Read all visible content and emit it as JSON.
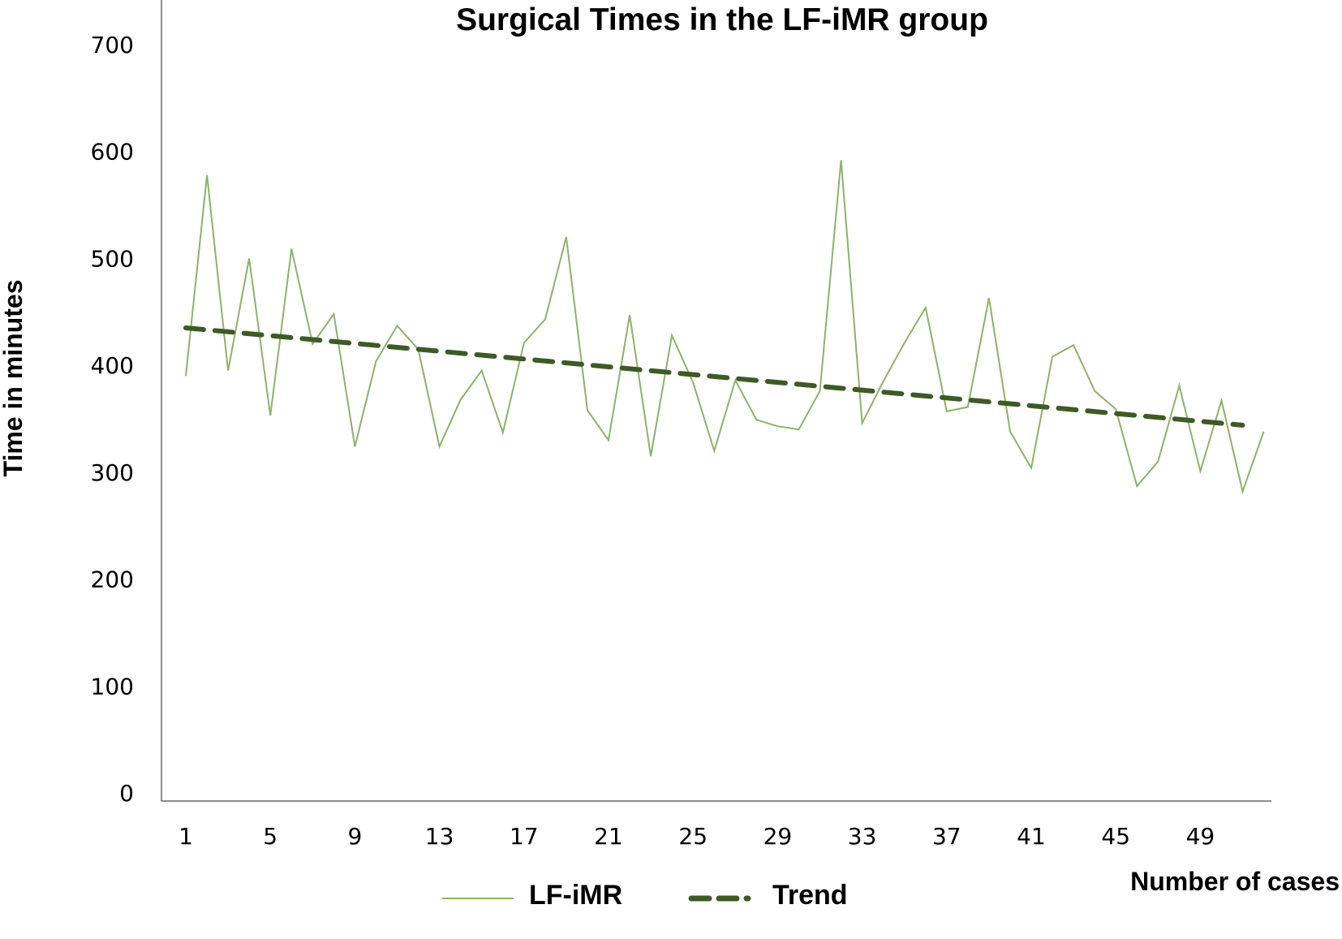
{
  "chart_data": {
    "type": "line",
    "title": "Surgical Times in the LF-iMR group",
    "xlabel": "Number of cases",
    "ylabel": "Time in minutes",
    "xlim": [
      0,
      53
    ],
    "ylim": [
      0,
      700
    ],
    "x_ticks": [
      1,
      5,
      9,
      13,
      17,
      21,
      25,
      29,
      33,
      37,
      41,
      45,
      49
    ],
    "y_ticks": [
      0,
      100,
      200,
      300,
      400,
      500,
      600,
      700
    ],
    "grid": false,
    "legend_position": "bottom",
    "series": [
      {
        "name": "LF-iMR",
        "color": "#8db26a",
        "style": "solid",
        "x": [
          1,
          2,
          3,
          4,
          5,
          6,
          7,
          8,
          9,
          10,
          11,
          12,
          13,
          14,
          15,
          16,
          17,
          18,
          19,
          20,
          21,
          22,
          23,
          24,
          25,
          26,
          27,
          28,
          29,
          30,
          31,
          32,
          33,
          34,
          35,
          36,
          37,
          38,
          39,
          40,
          41,
          42,
          43,
          44,
          45,
          46,
          47,
          48,
          49,
          50,
          51,
          52
        ],
        "values": [
          390,
          578,
          395,
          500,
          353,
          509,
          420,
          448,
          324,
          404,
          437,
          415,
          324,
          368,
          395,
          337,
          421,
          443,
          520,
          358,
          330,
          447,
          315,
          428,
          384,
          320,
          386,
          349,
          343,
          340,
          376,
          592,
          346,
          385,
          421,
          454,
          357,
          361,
          463,
          338,
          304,
          408,
          419,
          376,
          359,
          287,
          310,
          381,
          301,
          367,
          282,
          338
        ]
      },
      {
        "name": "Trend",
        "color": "#3e5a26",
        "style": "dashed",
        "x": [
          1,
          51
        ],
        "values": [
          435,
          344
        ]
      }
    ]
  }
}
